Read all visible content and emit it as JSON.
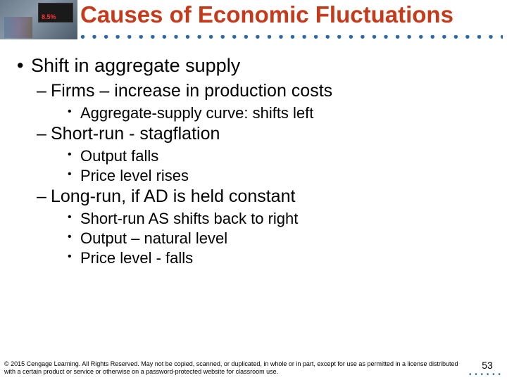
{
  "title": {
    "text": "Causes of Economic Fluctuations",
    "color": "#c43a1a",
    "fontsize": 33
  },
  "dotted_color": "#2a6aa8",
  "header_image": {
    "sign_percent": "8.5%"
  },
  "bullets": {
    "b1": "Shift in aggregate supply",
    "b1_1": "Firms – increase in production costs",
    "b1_1_1": "Aggregate-supply curve: shifts left",
    "b1_2": "Short-run - stagflation",
    "b1_2_1": "Output falls",
    "b1_2_2": "Price level rises",
    "b1_3": "Long-run, if AD is held constant",
    "b1_3_1": "Short-run AS shifts back to right",
    "b1_3_2": "Output – natural level",
    "b1_3_3": "Price level - falls"
  },
  "footer": {
    "text": "© 2015 Cengage Learning. All Rights Reserved. May not be copied, scanned, or duplicated, in whole or in part, except for use as permitted in a license distributed with a certain product or service or otherwise on a password-protected website for classroom use."
  },
  "page_number": "53"
}
